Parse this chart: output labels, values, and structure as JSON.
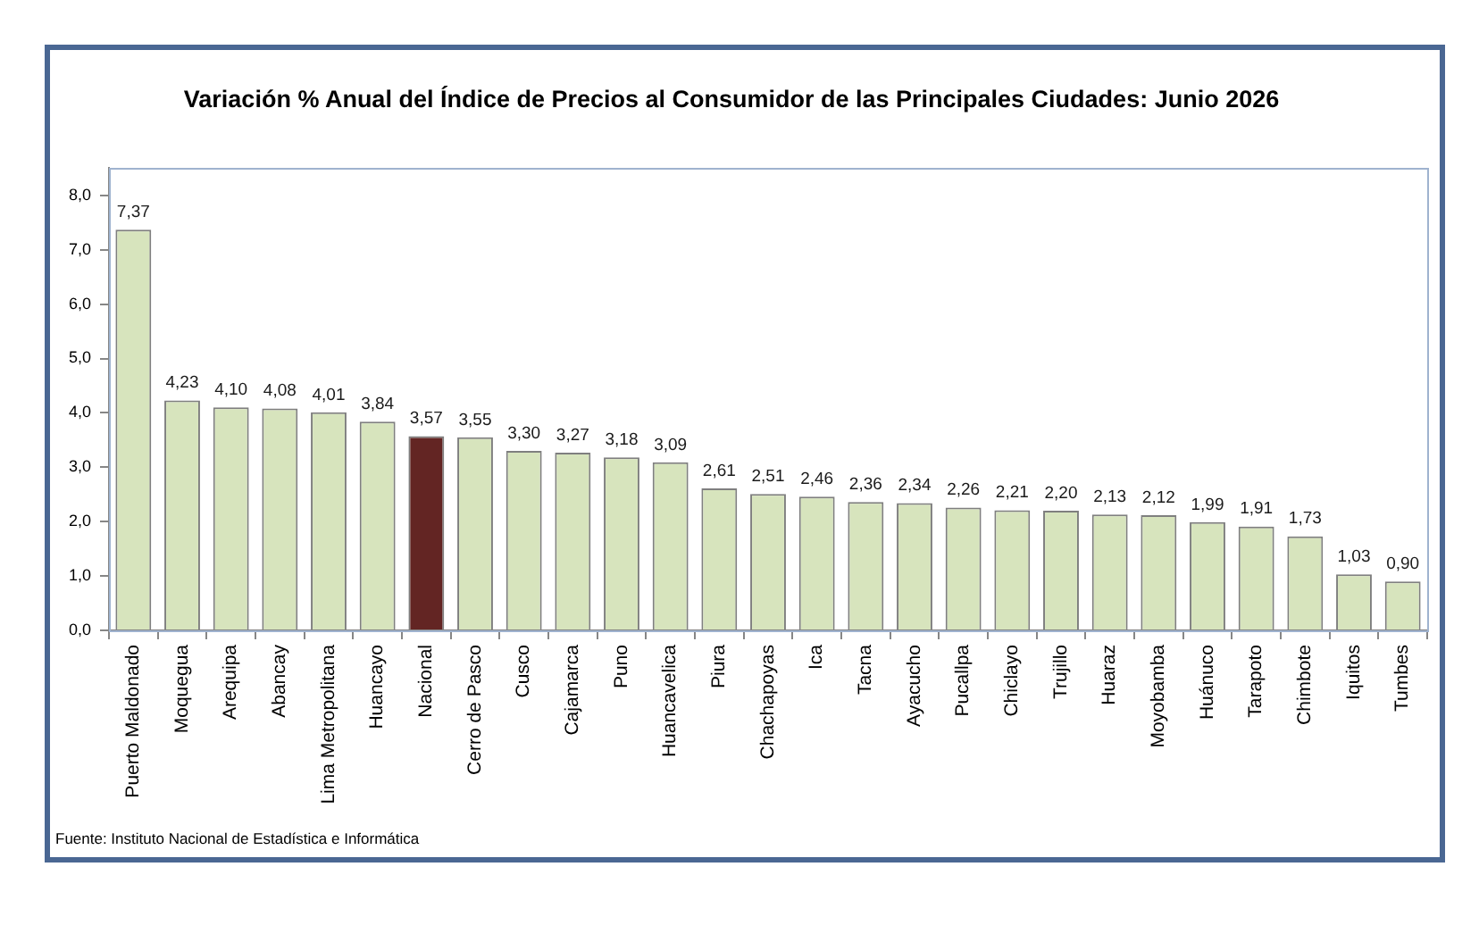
{
  "chart_data": {
    "type": "bar",
    "title": "Variación % Anual del Índice de Precios al Consumidor de las Principales Ciudades: Junio 2026",
    "categories": [
      "Puerto Maldonado",
      "Moquegua",
      "Arequipa",
      "Abancay",
      "Lima Metropolitana",
      "Huancayo",
      "Nacional",
      "Cerro de Pasco",
      "Cusco",
      "Cajamarca",
      "Puno",
      "Huancavelica",
      "Piura",
      "Chachapoyas",
      "Ica",
      "Tacna",
      "Ayacucho",
      "Pucallpa",
      "Chiclayo",
      "Trujillo",
      "Huaraz",
      "Moyobamba",
      "Huánuco",
      "Tarapoto",
      "Chimbote",
      "Iquitos",
      "Tumbes"
    ],
    "values": [
      7.37,
      4.23,
      4.1,
      4.08,
      4.01,
      3.84,
      3.57,
      3.55,
      3.3,
      3.27,
      3.18,
      3.09,
      2.61,
      2.51,
      2.46,
      2.36,
      2.34,
      2.26,
      2.21,
      2.2,
      2.13,
      2.12,
      1.99,
      1.91,
      1.73,
      1.03,
      0.9
    ],
    "colors": [
      "#d7e4bd",
      "#d7e4bd",
      "#d7e4bd",
      "#d7e4bd",
      "#d7e4bd",
      "#d7e4bd",
      "#632523",
      "#d7e4bd",
      "#d7e4bd",
      "#d7e4bd",
      "#d7e4bd",
      "#d7e4bd",
      "#d7e4bd",
      "#d7e4bd",
      "#d7e4bd",
      "#d7e4bd",
      "#d7e4bd",
      "#d7e4bd",
      "#d7e4bd",
      "#d7e4bd",
      "#d7e4bd",
      "#d7e4bd",
      "#d7e4bd",
      "#d7e4bd",
      "#d7e4bd",
      "#d7e4bd",
      "#d7e4bd"
    ],
    "value_labels": [
      "7,37",
      "4,23",
      "4,10",
      "4,08",
      "4,01",
      "3,84",
      "3,57",
      "3,55",
      "3,30",
      "3,27",
      "3,18",
      "3,09",
      "2,61",
      "2,51",
      "2,46",
      "2,36",
      "2,34",
      "2,26",
      "2,21",
      "2,20",
      "2,13",
      "2,12",
      "1,99",
      "1,91",
      "1,73",
      "1,03",
      "0,90"
    ],
    "ylim": [
      0,
      8.5
    ],
    "yticks": [
      {
        "value": 0,
        "label": "0,0"
      },
      {
        "value": 1,
        "label": "1,0"
      },
      {
        "value": 2,
        "label": "2,0"
      },
      {
        "value": 3,
        "label": "3,0"
      },
      {
        "value": 4,
        "label": "4,0"
      },
      {
        "value": 5,
        "label": "5,0"
      },
      {
        "value": 6,
        "label": "6,0"
      },
      {
        "value": 7,
        "label": "7,0"
      },
      {
        "value": 8,
        "label": "8,0"
      }
    ],
    "grid": false,
    "annotations": [
      "Fuente: Instituto Nacional de Estadística e Informática"
    ]
  }
}
